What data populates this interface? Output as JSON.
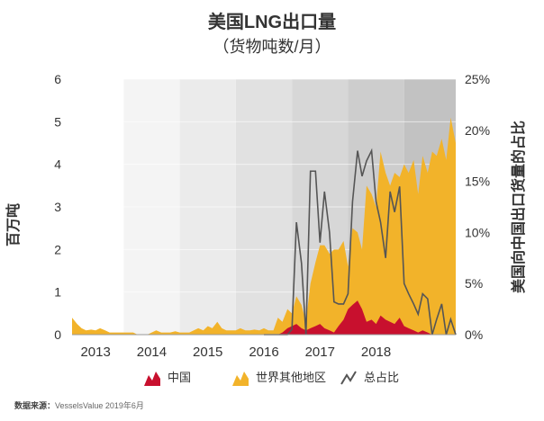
{
  "chart_data": {
    "type": "area",
    "title": "美国LNG出口量",
    "subtitle": "（货物吨数/月）",
    "ylabel_left": "百万吨",
    "ylabel_right": "美国向中国出口货量的占比",
    "ylim_left": [
      0,
      6
    ],
    "ylim_right": [
      0,
      25
    ],
    "yticks_left": [
      "0",
      "1",
      "2",
      "3",
      "4",
      "5",
      "6"
    ],
    "yticks_right": [
      "0%",
      "5%",
      "10%",
      "15%",
      "20%",
      "25%"
    ],
    "year_labels": [
      "2013",
      "2014",
      "2015",
      "2016",
      "2017",
      "2018"
    ],
    "x_start": 2012.58,
    "x_end": 2019.42,
    "series": [
      {
        "name": "世界其他地区",
        "color": "#F2B32A",
        "x": [
          2012.58,
          2012.67,
          2012.75,
          2012.83,
          2012.92,
          2013.0,
          2013.08,
          2013.17,
          2013.25,
          2013.33,
          2013.42,
          2013.5,
          2013.58,
          2013.67,
          2013.75,
          2013.83,
          2013.92,
          2014.0,
          2014.08,
          2014.17,
          2014.25,
          2014.33,
          2014.42,
          2014.5,
          2014.58,
          2014.67,
          2014.75,
          2014.83,
          2014.92,
          2015.0,
          2015.08,
          2015.17,
          2015.25,
          2015.33,
          2015.42,
          2015.5,
          2015.58,
          2015.67,
          2015.75,
          2015.83,
          2015.92,
          2016.0,
          2016.08,
          2016.17,
          2016.25,
          2016.33,
          2016.42,
          2016.5,
          2016.58,
          2016.67,
          2016.75,
          2016.83,
          2016.92,
          2017.0,
          2017.08,
          2017.17,
          2017.25,
          2017.33,
          2017.42,
          2017.5,
          2017.58,
          2017.67,
          2017.75,
          2017.83,
          2017.92,
          2018.0,
          2018.08,
          2018.17,
          2018.25,
          2018.33,
          2018.42,
          2018.5,
          2018.58,
          2018.67,
          2018.75,
          2018.83,
          2018.92,
          2019.0,
          2019.08,
          2019.17,
          2019.25,
          2019.33,
          2019.42
        ],
        "values": [
          0.4,
          0.25,
          0.15,
          0.1,
          0.12,
          0.1,
          0.15,
          0.1,
          0.05,
          0.05,
          0.05,
          0.05,
          0.05,
          0.05,
          0.0,
          0.0,
          0.0,
          0.05,
          0.1,
          0.05,
          0.05,
          0.05,
          0.08,
          0.05,
          0.05,
          0.05,
          0.1,
          0.15,
          0.1,
          0.2,
          0.15,
          0.3,
          0.15,
          0.1,
          0.1,
          0.1,
          0.15,
          0.1,
          0.1,
          0.12,
          0.1,
          0.15,
          0.1,
          0.1,
          0.4,
          0.3,
          0.6,
          0.5,
          0.9,
          0.7,
          0.3,
          1.2,
          1.7,
          2.1,
          2.1,
          1.9,
          2.0,
          2.0,
          2.2,
          1.6,
          2.5,
          2.4,
          2.0,
          3.5,
          3.3,
          3.0,
          4.3,
          3.8,
          3.5,
          3.8,
          3.7,
          4.0,
          3.8,
          4.1,
          3.3,
          4.2,
          3.8,
          4.3,
          4.2,
          4.6,
          4.1,
          5.1,
          4.5
        ]
      },
      {
        "name": "中国",
        "color": "#C8102E",
        "x": [
          2012.58,
          2016.0,
          2016.17,
          2016.25,
          2016.33,
          2016.42,
          2016.5,
          2016.58,
          2016.67,
          2016.75,
          2016.83,
          2016.92,
          2017.0,
          2017.08,
          2017.17,
          2017.25,
          2017.33,
          2017.42,
          2017.5,
          2017.58,
          2017.67,
          2017.75,
          2017.83,
          2017.92,
          2018.0,
          2018.08,
          2018.17,
          2018.25,
          2018.33,
          2018.42,
          2018.5,
          2018.58,
          2018.67,
          2018.75,
          2018.83,
          2018.92,
          2019.0,
          2019.42
        ],
        "values": [
          0,
          0,
          0,
          0,
          0.05,
          0.15,
          0.2,
          0.25,
          0.15,
          0.1,
          0.15,
          0.2,
          0.25,
          0.15,
          0.1,
          0.05,
          0.2,
          0.35,
          0.6,
          0.7,
          0.8,
          0.6,
          0.3,
          0.35,
          0.25,
          0.45,
          0.35,
          0.3,
          0.25,
          0.4,
          0.2,
          0.15,
          0.1,
          0.05,
          0.1,
          0.05,
          0,
          0
        ]
      },
      {
        "name": "总占比",
        "color": "#555555",
        "axis": "right",
        "x": [
          2016.0,
          2016.08,
          2016.17,
          2016.25,
          2016.33,
          2016.42,
          2016.5,
          2016.58,
          2016.67,
          2016.75,
          2016.83,
          2016.92,
          2017.0,
          2017.08,
          2017.17,
          2017.25,
          2017.33,
          2017.42,
          2017.5,
          2017.58,
          2017.67,
          2017.75,
          2017.83,
          2017.92,
          2018.0,
          2018.08,
          2018.17,
          2018.25,
          2018.33,
          2018.42,
          2018.5,
          2018.58,
          2018.67,
          2018.75,
          2018.83,
          2018.92,
          2019.0,
          2019.08,
          2019.17,
          2019.25,
          2019.33,
          2019.42
        ],
        "values": [
          0,
          0,
          0,
          0,
          0,
          0,
          0.5,
          11.0,
          7.0,
          0,
          16.0,
          16.0,
          9.0,
          14.0,
          10.0,
          3.2,
          3.0,
          3.0,
          4.0,
          13.0,
          18.0,
          15.5,
          17.0,
          18.0,
          13.0,
          11.0,
          7.5,
          14.0,
          12.0,
          14.5,
          5.0,
          4.0,
          3.0,
          2.0,
          4.0,
          3.5,
          0,
          1.5,
          3.0,
          0,
          1.5,
          0
        ]
      }
    ],
    "legend": [
      {
        "label": "中国",
        "color": "#C8102E",
        "icon": "red-area-icon"
      },
      {
        "label": "世界其他地区",
        "color": "#F2B32A",
        "icon": "yellow-area-icon"
      },
      {
        "label": "总占比",
        "color": "#555555",
        "icon": "line-icon"
      }
    ],
    "source_prefix": "数据来源：",
    "source_text": "VesselsValue 2019年6月"
  }
}
